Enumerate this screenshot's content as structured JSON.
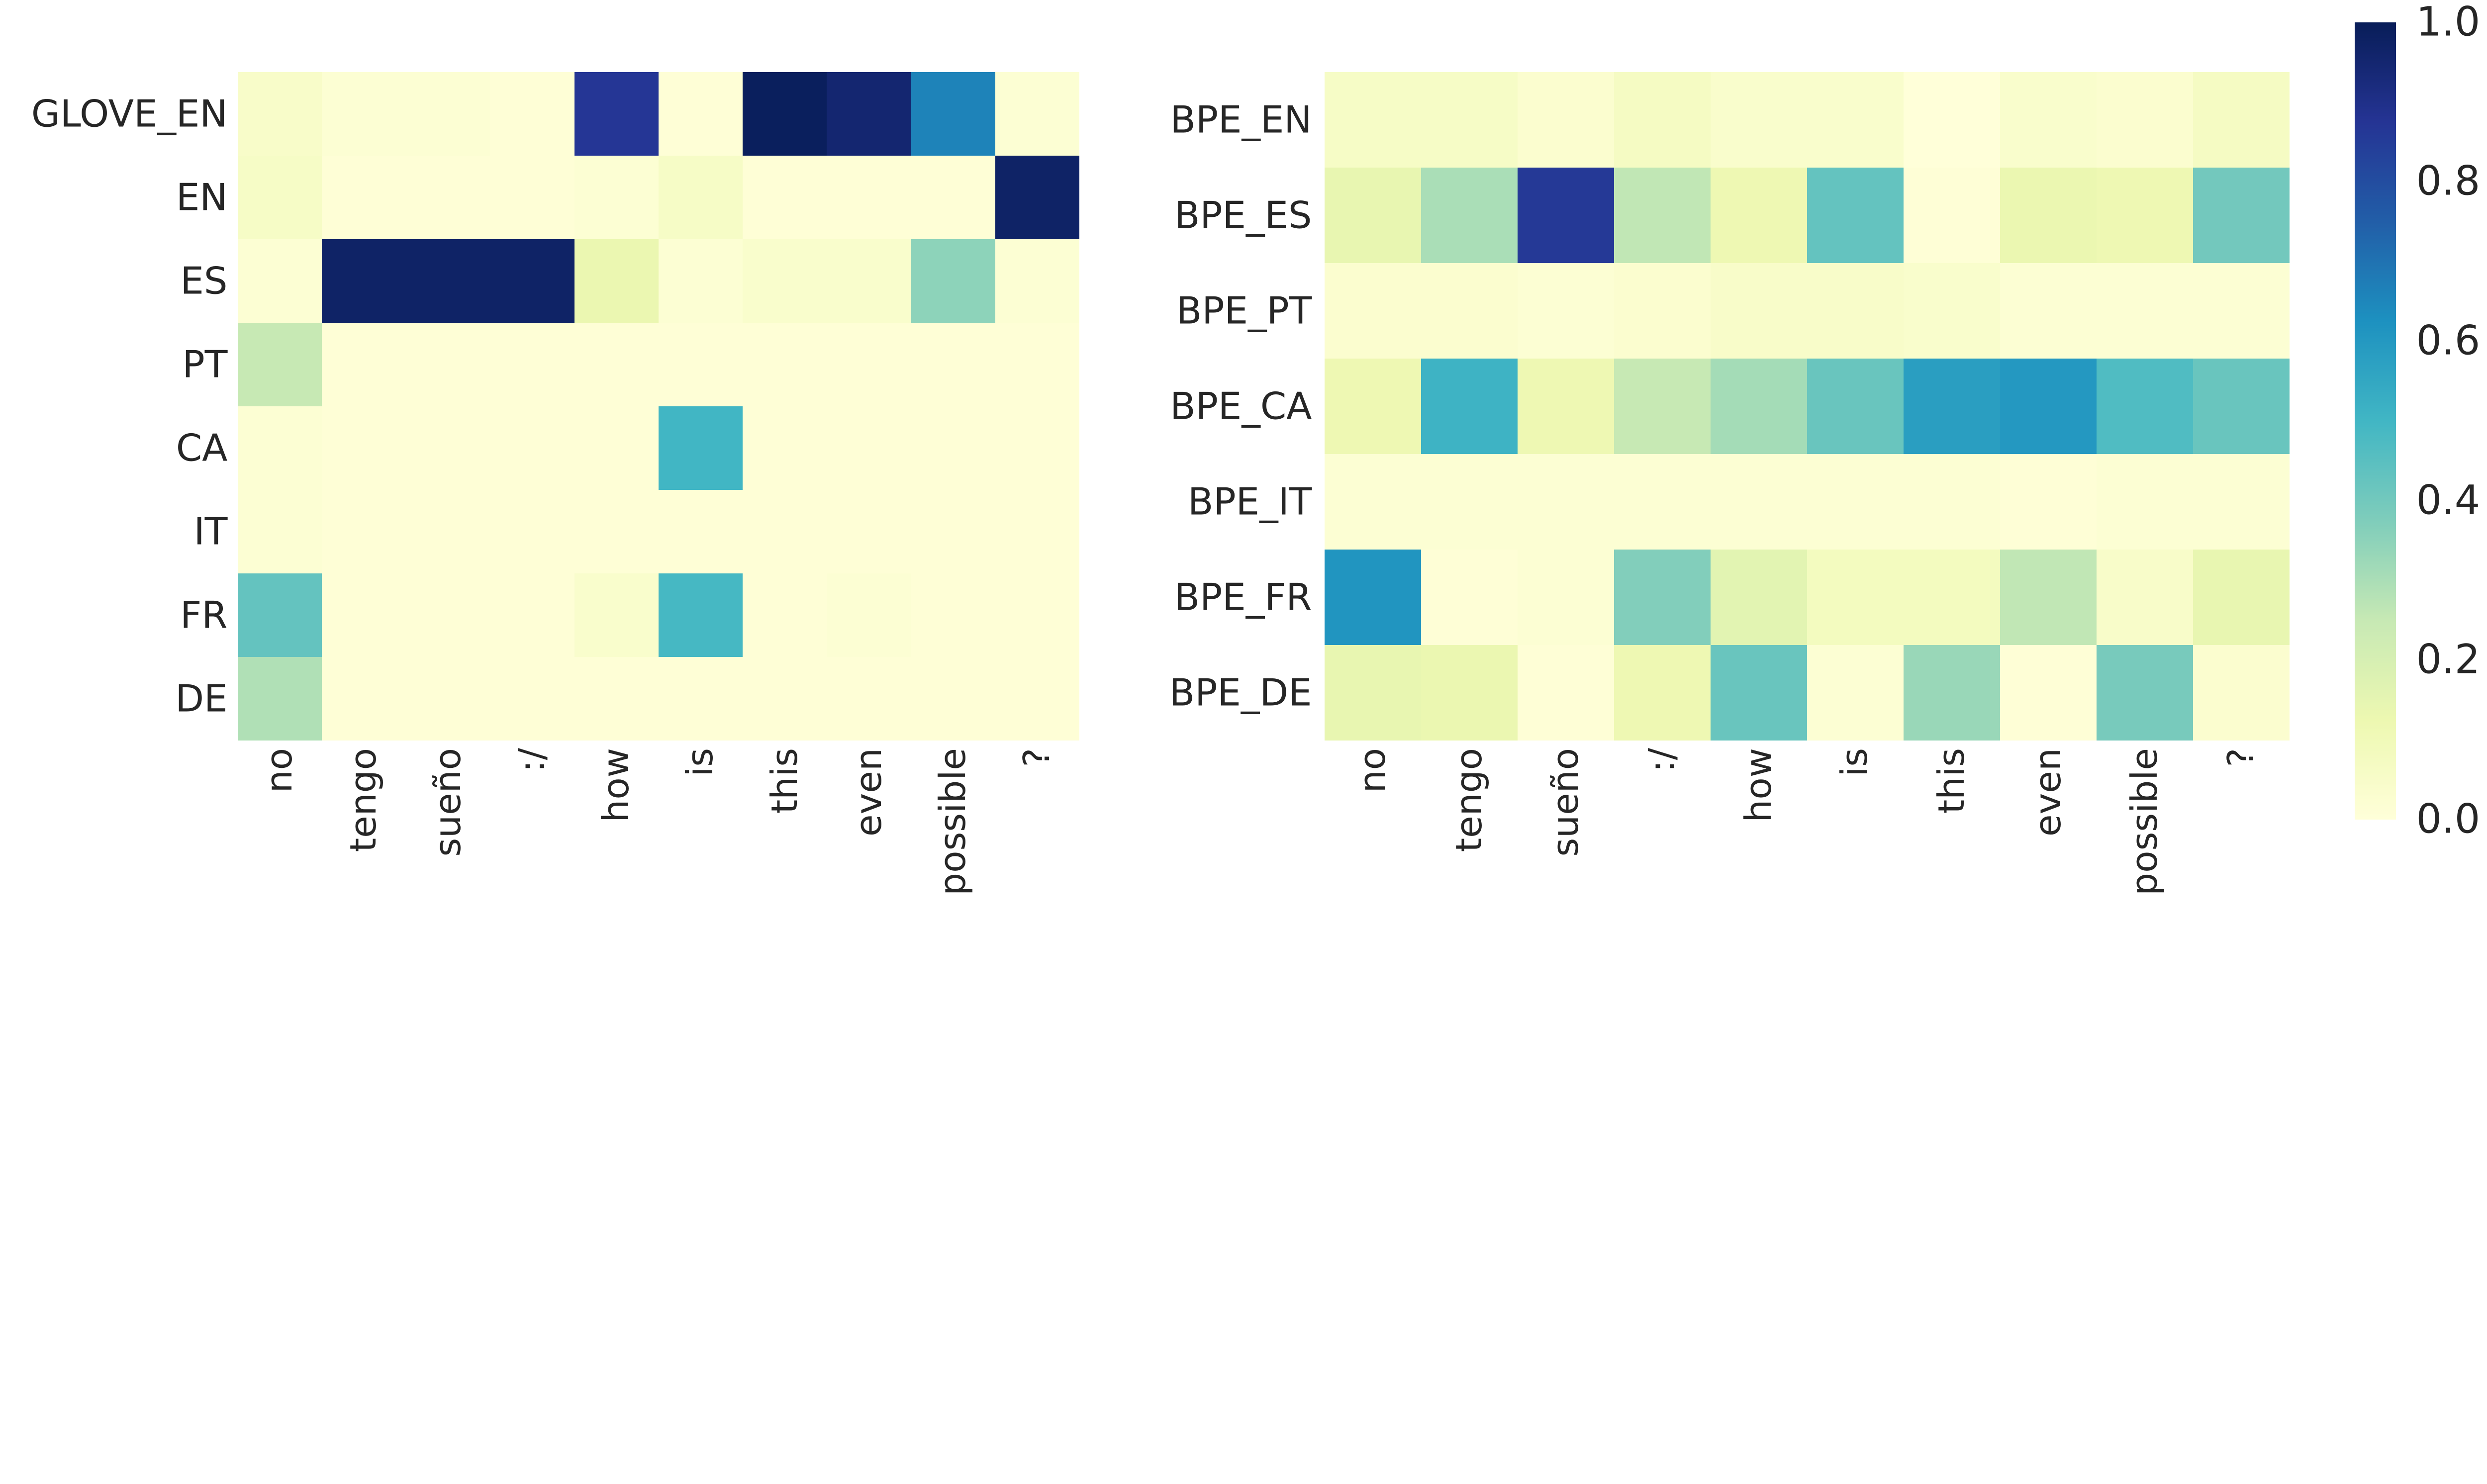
{
  "figure": {
    "background": "#ffffff",
    "text_color": "#262626",
    "colormap": {
      "name": "YlGnBu",
      "stops": [
        "#ffffd9",
        "#edf8b1",
        "#c7e9b4",
        "#7fcdbb",
        "#41b6c4",
        "#1d91c0",
        "#225ea8",
        "#253494",
        "#081d58"
      ]
    },
    "colorbar": {
      "tick_labels": [
        "1.0",
        "0.8",
        "0.6",
        "0.4",
        "0.2",
        "0.0"
      ],
      "vmin": 0.0,
      "vmax": 1.0,
      "position": "right"
    }
  },
  "chart_data": [
    {
      "type": "heatmap",
      "title": "",
      "xlabel": "",
      "ylabel": "",
      "colormap": "YlGnBu",
      "vmin": 0.0,
      "vmax": 1.0,
      "grid": false,
      "rows": [
        "GLOVE_EN",
        "EN",
        "ES",
        "PT",
        "CA",
        "IT",
        "FR",
        "DE"
      ],
      "columns": [
        "no",
        "tengo",
        "sueño",
        ":/",
        "how",
        "is",
        "this",
        "even",
        "possible",
        "?"
      ],
      "values": [
        [
          0.05,
          0.02,
          0.02,
          0.01,
          0.87,
          0.01,
          0.99,
          0.95,
          0.66,
          0.02
        ],
        [
          0.06,
          0.01,
          0.01,
          0.01,
          0.02,
          0.06,
          0.01,
          0.01,
          0.01,
          0.97
        ],
        [
          0.02,
          0.97,
          0.97,
          0.97,
          0.13,
          0.02,
          0.04,
          0.04,
          0.35,
          0.02
        ],
        [
          0.25,
          0.01,
          0.01,
          0.01,
          0.01,
          0.01,
          0.01,
          0.01,
          0.01,
          0.01
        ],
        [
          0.02,
          0.01,
          0.01,
          0.01,
          0.01,
          0.5,
          0.01,
          0.01,
          0.01,
          0.01
        ],
        [
          0.02,
          0.01,
          0.01,
          0.01,
          0.01,
          0.01,
          0.01,
          0.01,
          0.01,
          0.01
        ],
        [
          0.43,
          0.01,
          0.01,
          0.01,
          0.04,
          0.49,
          0.01,
          0.02,
          0.01,
          0.01
        ],
        [
          0.29,
          0.01,
          0.01,
          0.01,
          0.01,
          0.01,
          0.01,
          0.01,
          0.01,
          0.01
        ]
      ]
    },
    {
      "type": "heatmap",
      "title": "",
      "xlabel": "",
      "ylabel": "",
      "colormap": "YlGnBu",
      "vmin": 0.0,
      "vmax": 1.0,
      "grid": false,
      "rows": [
        "BPE_EN",
        "BPE_ES",
        "BPE_PT",
        "BPE_CA",
        "BPE_IT",
        "BPE_FR",
        "BPE_DE"
      ],
      "columns": [
        "no",
        "tengo",
        "sueño",
        ":/",
        "how",
        "is",
        "this",
        "even",
        "possible",
        "?"
      ],
      "values": [
        [
          0.06,
          0.06,
          0.03,
          0.07,
          0.04,
          0.04,
          0.0,
          0.04,
          0.03,
          0.07
        ],
        [
          0.14,
          0.3,
          0.86,
          0.26,
          0.12,
          0.43,
          0.01,
          0.13,
          0.12,
          0.4
        ],
        [
          0.03,
          0.03,
          0.02,
          0.03,
          0.05,
          0.05,
          0.04,
          0.02,
          0.02,
          0.02
        ],
        [
          0.12,
          0.51,
          0.12,
          0.25,
          0.31,
          0.42,
          0.58,
          0.6,
          0.47,
          0.42
        ],
        [
          0.02,
          0.02,
          0.02,
          0.02,
          0.02,
          0.02,
          0.02,
          0.01,
          0.02,
          0.02
        ],
        [
          0.61,
          0.01,
          0.02,
          0.37,
          0.16,
          0.08,
          0.08,
          0.26,
          0.05,
          0.14
        ],
        [
          0.14,
          0.13,
          0.01,
          0.12,
          0.42,
          0.02,
          0.33,
          0.01,
          0.39,
          0.03
        ]
      ]
    }
  ]
}
